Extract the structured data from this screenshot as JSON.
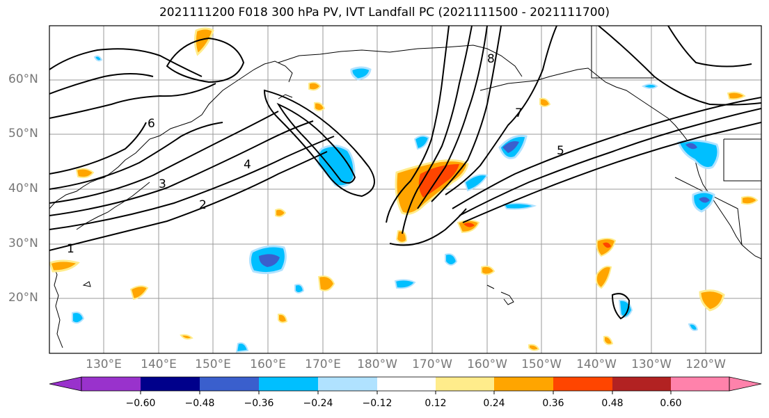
{
  "title": "2021111200 F018 300 hPa PV, IVT Landfall PC (2021111500 - 2021111700)",
  "map": {
    "lat_labels": [
      "60°N",
      "50°N",
      "40°N",
      "30°N",
      "20°N"
    ],
    "lon_labels": [
      "130°E",
      "140°E",
      "150°E",
      "160°E",
      "170°E",
      "180°W",
      "170°W",
      "160°W",
      "150°W",
      "140°W",
      "130°W",
      "120°W"
    ],
    "contour_labels": [
      "1",
      "2",
      "3",
      "4",
      "5",
      "6",
      "7",
      "8"
    ],
    "fill_colors": {
      "neg_strong": "#3a5fcd",
      "neg_mid": "#00bfff",
      "neg_weak": "#b0e2ff",
      "pos_weak": "#ffec8b",
      "pos_mid": "#ffa500",
      "pos_strong": "#ff4500"
    }
  },
  "colorbar": {
    "ticks": [
      "−0.60",
      "−0.48",
      "−0.36",
      "−0.24",
      "−0.12",
      "0.12",
      "0.24",
      "0.36",
      "0.48",
      "0.60"
    ],
    "colors": [
      "#9932cc",
      "#00008b",
      "#3a5fcd",
      "#00bfff",
      "#b0e2ff",
      "#ffffff",
      "#ffec8b",
      "#ffa500",
      "#ff4500",
      "#b22222",
      "#ff82ab"
    ]
  }
}
